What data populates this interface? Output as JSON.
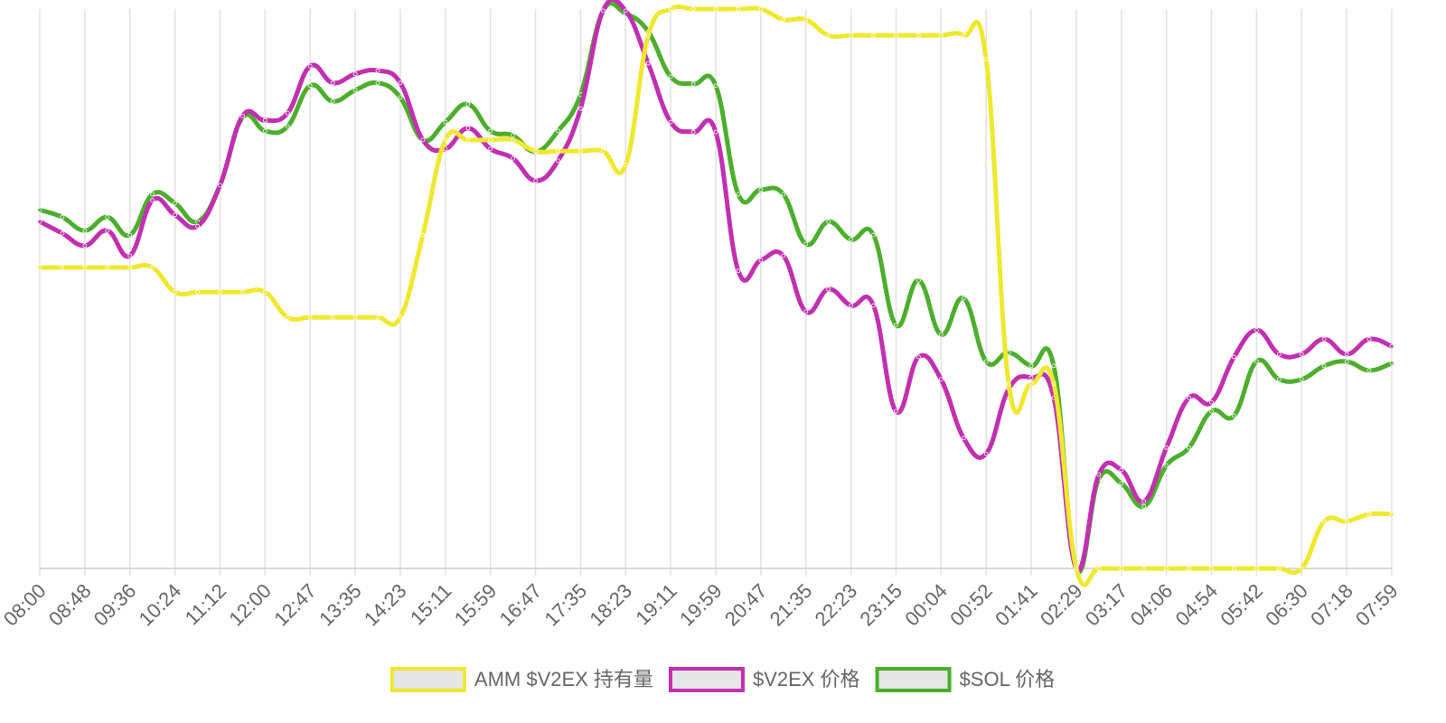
{
  "chart_data": {
    "type": "line",
    "categories": [
      "08:00",
      null,
      "08:48",
      null,
      "09:36",
      null,
      "10:24",
      null,
      "11:12",
      null,
      "12:00",
      null,
      "12:47",
      null,
      "13:35",
      null,
      "14:23",
      null,
      "15:11",
      null,
      "15:59",
      null,
      "16:47",
      null,
      "17:35",
      null,
      "18:23",
      null,
      "19:11",
      null,
      "19:59",
      null,
      "20:47",
      null,
      "21:35",
      null,
      "22:23",
      null,
      "23:15",
      null,
      "00:04",
      null,
      "00:52",
      null,
      "01:41",
      null,
      "02:29",
      null,
      "03:17",
      null,
      "04:06",
      null,
      "04:54",
      null,
      "05:42",
      null,
      "06:30",
      null,
      "07:18",
      null,
      "07:59"
    ],
    "ylim": [
      0,
      100
    ],
    "grid": true,
    "legend": "bottom",
    "series": [
      {
        "name": "AMM $V2EX 持有量",
        "color": "#f0e82e",
        "values": [
          53.8,
          53.8,
          53.8,
          53.8,
          53.8,
          53.8,
          49.4,
          49.4,
          49.4,
          49.4,
          49.4,
          44.9,
          44.9,
          44.9,
          44.9,
          44.9,
          44.9,
          59.6,
          76.6,
          76.6,
          76.6,
          76.6,
          74.6,
          74.6,
          74.6,
          74.6,
          72.1,
          95.2,
          100,
          100,
          100,
          100,
          100,
          98.1,
          98.1,
          95.3,
          95.3,
          95.3,
          95.3,
          95.3,
          95.3,
          95.3,
          91.0,
          33.0,
          33.0,
          33.0,
          0,
          0,
          0,
          0,
          0,
          0,
          0,
          0,
          0,
          0,
          0,
          8.4,
          8.4,
          9.7,
          9.7
        ]
      },
      {
        "name": "$V2EX 价格",
        "color": "#c22fb0",
        "values": [
          62.0,
          59.9,
          57.7,
          60.4,
          55.9,
          65.8,
          63.2,
          61.2,
          68.5,
          80.9,
          80.1,
          81.4,
          89.8,
          86.8,
          88.4,
          89.0,
          86.8,
          76.6,
          75.0,
          78.7,
          75.0,
          73.3,
          69.3,
          72.9,
          82.2,
          99.7,
          99.7,
          90.3,
          79.8,
          78.0,
          78.0,
          53.2,
          55.1,
          55.9,
          45.9,
          49.9,
          47.0,
          47.0,
          28.1,
          37.8,
          33.8,
          23.3,
          20.5,
          32.1,
          34.1,
          30.5,
          0,
          16.8,
          17.6,
          12.0,
          21.6,
          30.5,
          29.7,
          37.8,
          42.6,
          38.3,
          38.3,
          41.0,
          38.3,
          41.0,
          39.7
        ]
      },
      {
        "name": "$SOL 价格",
        "color": "#4caf2c",
        "values": [
          64.1,
          62.8,
          60.4,
          62.8,
          59.6,
          66.9,
          65.3,
          62.0,
          68.5,
          80.6,
          78.2,
          79.0,
          86.3,
          83.5,
          85.5,
          86.8,
          84.2,
          76.6,
          79.8,
          83.0,
          78.2,
          77.4,
          74.5,
          78.2,
          84.7,
          99.7,
          99.2,
          96.0,
          87.9,
          86.6,
          86.3,
          66.9,
          67.7,
          66.9,
          58.0,
          62.0,
          58.8,
          59.6,
          43.5,
          51.5,
          41.8,
          48.3,
          37.0,
          38.6,
          36.2,
          36.2,
          0,
          16.0,
          15.2,
          11.1,
          18.4,
          21.6,
          28.1,
          27.3,
          37.0,
          33.8,
          33.8,
          36.2,
          37.0,
          35.4,
          36.7
        ]
      }
    ]
  }
}
